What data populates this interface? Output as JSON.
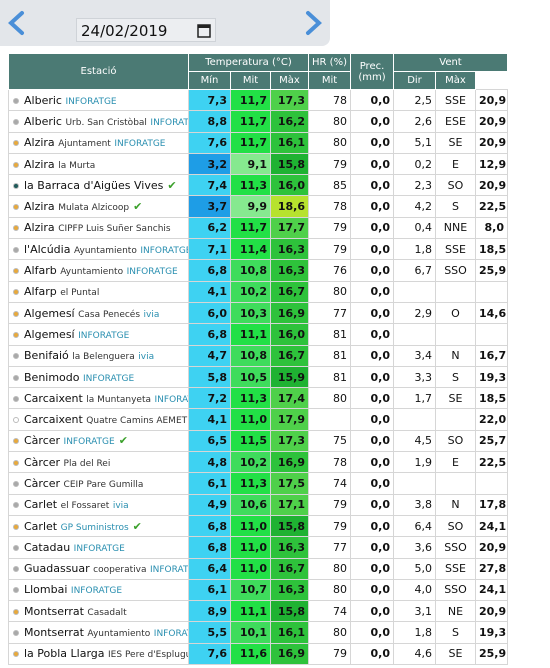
{
  "date": "24/02/2019",
  "header": {
    "station": "Estació",
    "temperature": "Temperatura (°C)",
    "humidity": "HR (%)",
    "precipitation": "Prec. (mm)",
    "wind": "Vent",
    "sub": [
      "Mín",
      "Mit",
      "Màx",
      "Mit",
      "Mit",
      "Dir",
      "Màx"
    ]
  },
  "rows": [
    {
      "station": "Alberic",
      "network": "INFORATGE",
      "dot": "#a9a9a9",
      "values": [
        "7,3",
        "11,7",
        "17,3",
        "78",
        "0,0",
        "2,5",
        "SSE",
        "20,9"
      ]
    },
    {
      "station": "Alberic",
      "place": "Urb. San Cristòbal",
      "network": "INFORATGE",
      "dot": "#a9a9a9",
      "values": [
        "8,8",
        "11,7",
        "16,2",
        "80",
        "0,0",
        "2,6",
        "ESE",
        "20,9"
      ]
    },
    {
      "station": "Alzira",
      "place": "Ajuntament",
      "network": "INFORATGE",
      "dot": "#e8a93c",
      "values": [
        "7,6",
        "11,7",
        "16,1",
        "80",
        "0,0",
        "5,1",
        "SE",
        "20,9"
      ]
    },
    {
      "station": "Alzira",
      "place": "la Murta",
      "dot": "#e8a93c",
      "values": [
        "3,2",
        "9,1",
        "15,8",
        "79",
        "0,0",
        "0,2",
        "E",
        "12,9"
      ]
    },
    {
      "station": "la Barraca d'Aigües Vives",
      "dot": "#1f5a5a",
      "check": true,
      "values": [
        "7,4",
        "11,3",
        "16,0",
        "85",
        "0,0",
        "2,3",
        "SO",
        "20,9"
      ]
    },
    {
      "station": "Alzira",
      "place": "Mulata Alzicoop",
      "dot": "#e8a93c",
      "check": true,
      "values": [
        "3,7",
        "9,9",
        "18,6",
        "78",
        "0,0",
        "4,2",
        "S",
        "22,5"
      ]
    },
    {
      "station": "Alzira",
      "place": "CIPFP Luis Suñer Sanchis",
      "dot": "#e8a93c",
      "values": [
        "6,2",
        "11,7",
        "17,7",
        "79",
        "0,0",
        "0,4",
        "NNE",
        "8,0"
      ]
    },
    {
      "station": "l'Alcúdia",
      "place": "Ayuntamiento",
      "network": "INFORATGE",
      "dot": "#a9a9a9",
      "values": [
        "7,1",
        "11,4",
        "16,3",
        "79",
        "0,0",
        "1,8",
        "SSE",
        "18,5"
      ]
    },
    {
      "station": "Alfarb",
      "place": "Ayuntamiento",
      "network": "INFORATGE",
      "dot": "#e8a93c",
      "values": [
        "6,8",
        "10,8",
        "16,3",
        "76",
        "0,0",
        "6,7",
        "SSO",
        "25,9"
      ]
    },
    {
      "station": "Alfarp",
      "place": "el Puntal",
      "dot": "#e8a93c",
      "values": [
        "4,1",
        "10,2",
        "16,7",
        "80",
        "0,0",
        null,
        null,
        null
      ]
    },
    {
      "station": "Algemesí",
      "place": "Casa Penecés",
      "network": "ivia",
      "dot": "#e8a93c",
      "values": [
        "6,0",
        "10,3",
        "16,9",
        "77",
        "0,0",
        "2,9",
        "O",
        "14,6"
      ]
    },
    {
      "station": "Algemesí",
      "network": "INFORATGE",
      "dot": "#e8a93c",
      "values": [
        "6,8",
        "11,1",
        "16,0",
        "81",
        "0,0",
        null,
        null,
        null
      ]
    },
    {
      "station": "Benifaió",
      "place": "la Belenguera",
      "network": "ivia",
      "dot": "#a9a9a9",
      "values": [
        "4,7",
        "10,8",
        "16,7",
        "81",
        "0,0",
        "3,4",
        "N",
        "16,7"
      ]
    },
    {
      "station": "Benimodo",
      "network": "INFORATGE",
      "dot": "#a9a9a9",
      "values": [
        "5,8",
        "10,5",
        "15,9",
        "81",
        "0,0",
        "3,3",
        "S",
        "19,3"
      ]
    },
    {
      "station": "Carcaixent",
      "place": "la Muntanyeta",
      "network": "INFORATGE",
      "dot": "#a9a9a9",
      "values": [
        "7,2",
        "11,3",
        "17,4",
        "80",
        "0,0",
        "1,7",
        "SE",
        "18,5"
      ]
    },
    {
      "station": "Carcaixent",
      "place": "Quatre Camins AEMET",
      "dot": "#ffffff",
      "values": [
        "4,1",
        "11,0",
        "17,9",
        null,
        "0,0",
        null,
        null,
        "22,0"
      ]
    },
    {
      "station": "Càrcer",
      "network": "INFORATGE",
      "dot": "#e8a93c",
      "check": true,
      "values": [
        "6,5",
        "11,5",
        "17,3",
        "75",
        "0,0",
        "4,5",
        "SO",
        "25,7"
      ]
    },
    {
      "station": "Càrcer",
      "place": "Pla del Rei",
      "dot": "#e8a93c",
      "values": [
        "4,8",
        "10,2",
        "16,9",
        "78",
        "0,0",
        "1,9",
        "E",
        "22,5"
      ]
    },
    {
      "station": "Càrcer",
      "place": "CEIP Pare Gumilla",
      "dot": "#a9a9a9",
      "values": [
        "6,1",
        "11,3",
        "17,5",
        "74",
        "0,0",
        null,
        null,
        null
      ]
    },
    {
      "station": "Carlet",
      "place": "el Fossaret",
      "network": "ivia",
      "dot": "#a9a9a9",
      "values": [
        "4,9",
        "10,6",
        "17,1",
        "79",
        "0,0",
        "3,8",
        "N",
        "17,8"
      ]
    },
    {
      "station": "Carlet",
      "network": "GP Suministros",
      "dot": "#e8a93c",
      "check": true,
      "values": [
        "6,8",
        "11,0",
        "15,8",
        "79",
        "0,0",
        "6,4",
        "SO",
        "24,1"
      ]
    },
    {
      "station": "Catadau",
      "network": "INFORATGE",
      "dot": "#a9a9a9",
      "values": [
        "6,8",
        "11,0",
        "16,3",
        "77",
        "0,0",
        "3,6",
        "SSO",
        "20,9"
      ]
    },
    {
      "station": "Guadassuar",
      "place": "cooperativa",
      "network": "INFORATGE",
      "dot": "#a9a9a9",
      "values": [
        "6,4",
        "11,0",
        "16,7",
        "80",
        "0,0",
        "5,0",
        "SSE",
        "27,8"
      ]
    },
    {
      "station": "Llombai",
      "network": "INFORATGE",
      "dot": "#a9a9a9",
      "values": [
        "6,1",
        "10,7",
        "16,3",
        "80",
        "0,0",
        "4,0",
        "SSO",
        "24,1"
      ]
    },
    {
      "station": "Montserrat",
      "place": "Casadalt",
      "dot": "#e8a93c",
      "values": [
        "8,9",
        "11,1",
        "15,8",
        "74",
        "0,0",
        "3,1",
        "NE",
        "20,9"
      ]
    },
    {
      "station": "Montserrat",
      "place": "Ayuntamiento",
      "network": "INFORATGE",
      "dot": "#a9a9a9",
      "values": [
        "5,5",
        "10,1",
        "16,1",
        "80",
        "0,0",
        "1,8",
        "S",
        "19,3"
      ]
    },
    {
      "station": "la Pobla Llarga",
      "place": "IES Pere d'Esplugues",
      "dot": "#e8a93c",
      "values": [
        "7,6",
        "11,6",
        "16,9",
        "79",
        "0,0",
        "4,6",
        "SE",
        "25,9"
      ]
    }
  ]
}
